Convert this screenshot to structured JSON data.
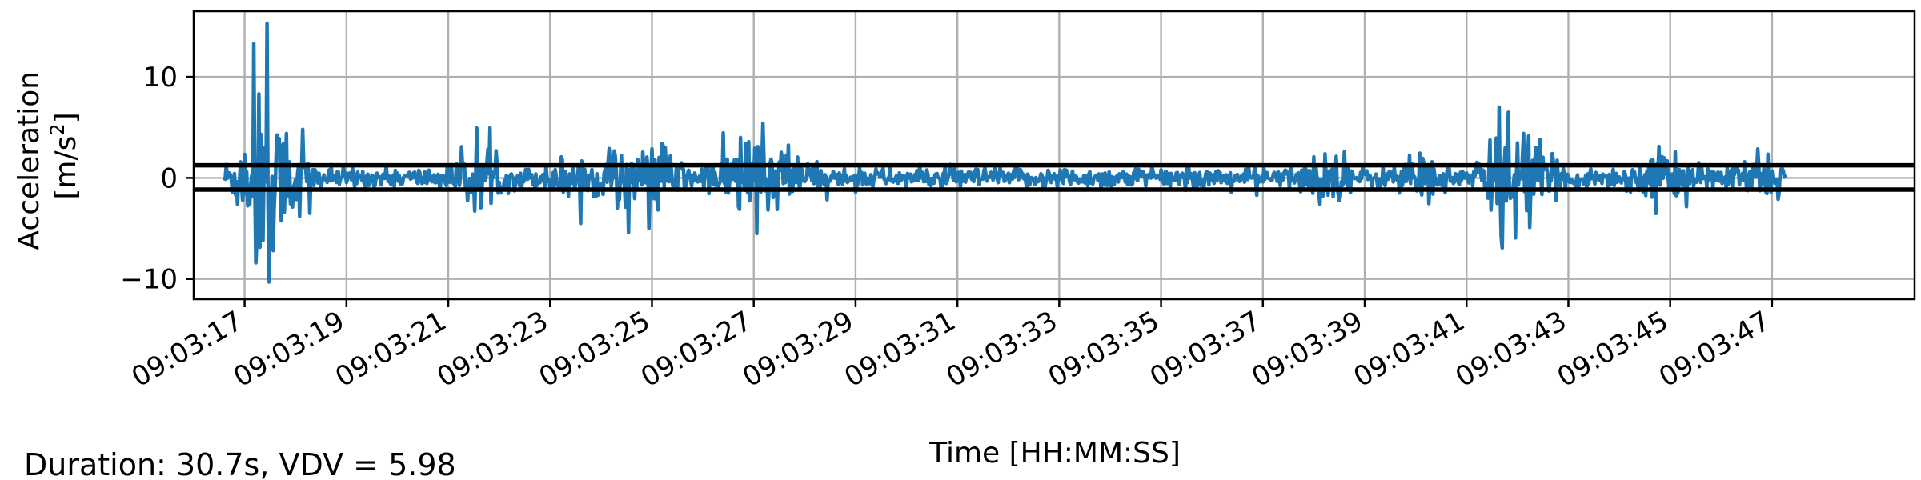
{
  "chart_data": {
    "type": "line",
    "xlabel": "Time [HH:MM:SS]",
    "ylabel_line1": "Acceleration",
    "ylabel_line2_prefix": "[m/s",
    "ylabel_sup": "2",
    "ylabel_line2_suffix": "]",
    "footer": "Duration: 30.7s, VDV = 5.98",
    "x_time_range_seconds": [
      16.0,
      49.8
    ],
    "ylim": [
      -12,
      16.5
    ],
    "y_ticks": [
      -10,
      0,
      10
    ],
    "y_tick_labels": [
      "−10",
      "0",
      "10"
    ],
    "x_ticks_seconds": [
      17,
      19,
      21,
      23,
      25,
      27,
      29,
      31,
      33,
      35,
      37,
      39,
      41,
      43,
      45,
      47
    ],
    "x_tick_labels": [
      "09:03:17",
      "09:03:19",
      "09:03:21",
      "09:03:23",
      "09:03:25",
      "09:03:27",
      "09:03:29",
      "09:03:31",
      "09:03:33",
      "09:03:35",
      "09:03:37",
      "09:03:39",
      "09:03:41",
      "09:03:43",
      "09:03:45",
      "09:03:47"
    ],
    "grid": true,
    "series": [
      {
        "color": "#1f77b4",
        "start_time": "09:03:16.6",
        "end_time": "09:03:47.3",
        "sample_interval_seconds": 0.02,
        "noise_level": 0.9,
        "bursts": [
          {
            "t": 17.0,
            "amp": 2.4,
            "sigma": 0.35
          },
          {
            "t": 17.4,
            "amp": 6.5,
            "sigma": 0.25
          },
          {
            "t": 17.9,
            "amp": 3.0,
            "sigma": 0.35
          },
          {
            "t": 21.6,
            "amp": 2.0,
            "sigma": 0.4
          },
          {
            "t": 23.5,
            "amp": 1.6,
            "sigma": 0.4
          },
          {
            "t": 24.5,
            "amp": 2.0,
            "sigma": 0.4
          },
          {
            "t": 25.2,
            "amp": 2.2,
            "sigma": 0.35
          },
          {
            "t": 26.6,
            "amp": 2.0,
            "sigma": 0.4
          },
          {
            "t": 27.1,
            "amp": 3.3,
            "sigma": 0.3
          },
          {
            "t": 27.7,
            "amp": 1.8,
            "sigma": 0.4
          },
          {
            "t": 38.2,
            "amp": 1.6,
            "sigma": 0.4
          },
          {
            "t": 40.0,
            "amp": 1.6,
            "sigma": 0.4
          },
          {
            "t": 41.7,
            "amp": 3.5,
            "sigma": 0.35
          },
          {
            "t": 42.3,
            "amp": 2.5,
            "sigma": 0.35
          },
          {
            "t": 44.8,
            "amp": 1.4,
            "sigma": 0.5
          },
          {
            "t": 46.8,
            "amp": 1.3,
            "sigma": 0.5
          }
        ],
        "peaks": [
          {
            "t": 17.17,
            "v": 13.3
          },
          {
            "t": 17.21,
            "v": -8.4
          },
          {
            "t": 17.44,
            "v": 15.3
          },
          {
            "t": 17.48,
            "v": -10.3
          },
          {
            "t": 17.82,
            "v": 4.4
          },
          {
            "t": 18.14,
            "v": 4.8
          },
          {
            "t": 18.07,
            "v": -3.8
          },
          {
            "t": 18.28,
            "v": -3.5
          },
          {
            "t": 24.16,
            "v": 2.9
          },
          {
            "t": 25.22,
            "v": 3.2
          },
          {
            "t": 27.06,
            "v": -5.5
          },
          {
            "t": 27.18,
            "v": 5.4
          },
          {
            "t": 41.64,
            "v": 7.0
          },
          {
            "t": 41.69,
            "v": -5.8
          },
          {
            "t": 41.83,
            "v": 6.5
          },
          {
            "t": 42.12,
            "v": 4.4
          },
          {
            "t": 42.25,
            "v": -4.9
          },
          {
            "t": 42.45,
            "v": 3.8
          },
          {
            "t": 38.6,
            "v": 2.6
          },
          {
            "t": 44.85,
            "v": 2.1
          }
        ]
      }
    ],
    "threshold_lines": [
      {
        "y": 1.25,
        "color": "#000000"
      },
      {
        "y": -1.15,
        "color": "#000000"
      }
    ]
  }
}
